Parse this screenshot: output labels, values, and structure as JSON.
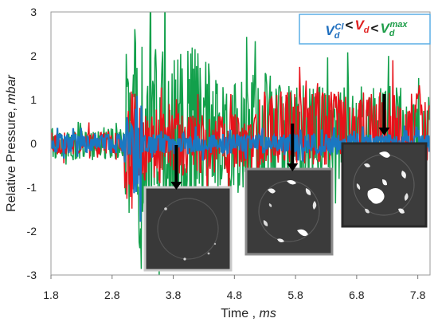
{
  "chart_data": {
    "type": "line",
    "xlabel": "Time",
    "xunit": "ms",
    "ylabel": "Relative Pressure,",
    "yunit": "mbar",
    "xlim": [
      1.8,
      8.0
    ],
    "ylim": [
      -3,
      3
    ],
    "x_ticks": [
      "1.8",
      "2.8",
      "3.8",
      "4.8",
      "5.8",
      "6.8",
      "7.8"
    ],
    "y_ticks": [
      "3",
      "2",
      "1",
      "0",
      "-1",
      "-2",
      "-3"
    ],
    "grid": false,
    "legend_position": "top-right",
    "legend": {
      "items": [
        {
          "base": "V",
          "sub": "d",
          "sup": "Cl",
          "color": "#1f6fbf"
        },
        {
          "text": "<",
          "color": "#1a1a1a"
        },
        {
          "base": "V",
          "sub": "d",
          "sup": "",
          "color": "#e02020"
        },
        {
          "text": "<",
          "color": "#1a1a1a"
        },
        {
          "base": "V",
          "sub": "d",
          "sup": "max",
          "color": "#1f9e4a"
        }
      ]
    },
    "series": [
      {
        "key": "cl",
        "color": "#1a78c2",
        "segments": [
          {
            "x0": 1.8,
            "x1": 3.0,
            "amp": 0.22
          },
          {
            "x0": 3.0,
            "x1": 3.15,
            "amp": 0.6
          },
          {
            "x0": 3.15,
            "x1": 3.3,
            "amp": 1.2
          },
          {
            "x0": 3.3,
            "x1": 8.0,
            "amp": 0.22
          }
        ]
      },
      {
        "key": "mid",
        "color": "#e8121a",
        "segments": [
          {
            "x0": 1.8,
            "x1": 3.0,
            "amp": 0.3
          },
          {
            "x0": 3.0,
            "x1": 3.2,
            "amp": 1.5
          },
          {
            "x0": 3.2,
            "x1": 3.6,
            "amp": 1.1
          },
          {
            "x0": 3.6,
            "x1": 5.2,
            "amp": 0.8
          },
          {
            "x0": 5.2,
            "x1": 8.0,
            "amp": 1.0
          }
        ]
      },
      {
        "key": "max",
        "color": "#12a04b",
        "segments": [
          {
            "x0": 1.8,
            "x1": 3.0,
            "amp": 0.45
          },
          {
            "x0": 3.0,
            "x1": 3.15,
            "amp": 2.2
          },
          {
            "x0": 3.15,
            "x1": 3.45,
            "amp": 3.0
          },
          {
            "x0": 3.45,
            "x1": 4.4,
            "amp": 2.3
          },
          {
            "x0": 4.4,
            "x1": 5.6,
            "amp": 1.6
          },
          {
            "x0": 5.6,
            "x1": 8.0,
            "amp": 1.3
          }
        ]
      }
    ],
    "insets": [
      {
        "name": "frame-low",
        "arrow_x": 3.85,
        "border": "#bdbdbd"
      },
      {
        "name": "frame-mid",
        "arrow_x": 5.75,
        "border": "#8c8c8c"
      },
      {
        "name": "frame-max",
        "arrow_x": 7.25,
        "border": "#3a3a3a"
      }
    ]
  }
}
